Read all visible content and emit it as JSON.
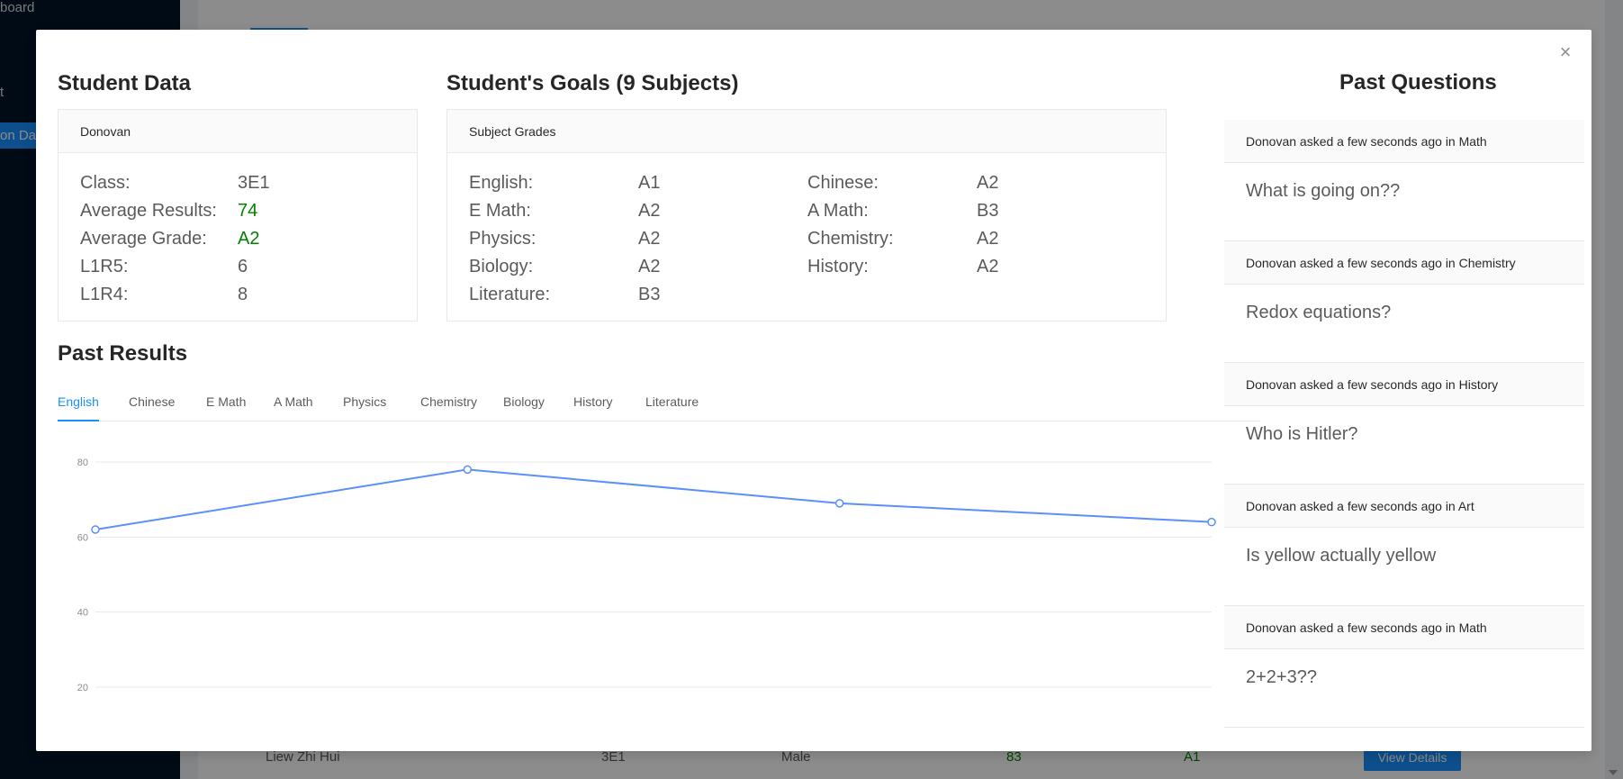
{
  "background": {
    "sidebar": [
      "board",
      "t",
      "on Dat"
    ],
    "row": {
      "name": "Liew Zhi Hui",
      "class": "3E1",
      "gender": "Male",
      "score": "83",
      "grade": "A1",
      "button": "View Details"
    }
  },
  "modal": {
    "close": "×",
    "student_data": {
      "title": "Student Data",
      "name": "Donovan",
      "fields": [
        {
          "label": "Class:",
          "value": "3E1",
          "green": false
        },
        {
          "label": "Average Results:",
          "value": "74",
          "green": true
        },
        {
          "label": "Average Grade:",
          "value": "A2",
          "green": true
        },
        {
          "label": "L1R5:",
          "value": "6",
          "green": false
        },
        {
          "label": "L1R4:",
          "value": "8",
          "green": false
        }
      ]
    },
    "goals": {
      "title": "Student's Goals (9 Subjects)",
      "header": "Subject Grades",
      "items": [
        {
          "label": "English:",
          "value": "A1"
        },
        {
          "label": "Chinese:",
          "value": "A2"
        },
        {
          "label": "E Math:",
          "value": "A2"
        },
        {
          "label": "A Math:",
          "value": "B3"
        },
        {
          "label": "Physics:",
          "value": "A2"
        },
        {
          "label": "Chemistry:",
          "value": "A2"
        },
        {
          "label": "Biology:",
          "value": "A2"
        },
        {
          "label": "History:",
          "value": "A2"
        },
        {
          "label": "Literature:",
          "value": "B3"
        }
      ]
    },
    "past_results": {
      "title": "Past Results",
      "tabs": [
        "English",
        "Chinese",
        "E Math",
        "A Math",
        "Physics",
        "Chemistry",
        "Biology",
        "History",
        "Literature"
      ],
      "active_tab": "English"
    },
    "past_questions": {
      "title": "Past Questions",
      "items": [
        {
          "meta": "Donovan asked a few seconds ago in Math",
          "question": "What is going on??"
        },
        {
          "meta": "Donovan asked a few seconds ago in Chemistry",
          "question": "Redox equations?"
        },
        {
          "meta": "Donovan asked a few seconds ago in History",
          "question": "Who is Hitler?"
        },
        {
          "meta": "Donovan asked a few seconds ago in Art",
          "question": "Is yellow actually yellow"
        },
        {
          "meta": "Donovan asked a few seconds ago in Math",
          "question": "2+2+3??"
        }
      ]
    }
  },
  "colors": {
    "accent": "#1890ff",
    "line": "#5b8ff9",
    "green": "#008000",
    "sidebar": "#001529"
  },
  "chart_data": {
    "type": "line",
    "x": [
      1,
      2,
      3,
      4
    ],
    "series": [
      {
        "values": [
          62,
          78,
          69,
          64
        ]
      }
    ],
    "yticks": [
      20,
      40,
      60,
      80
    ],
    "ylim": [
      15,
      85
    ],
    "grid": true
  }
}
